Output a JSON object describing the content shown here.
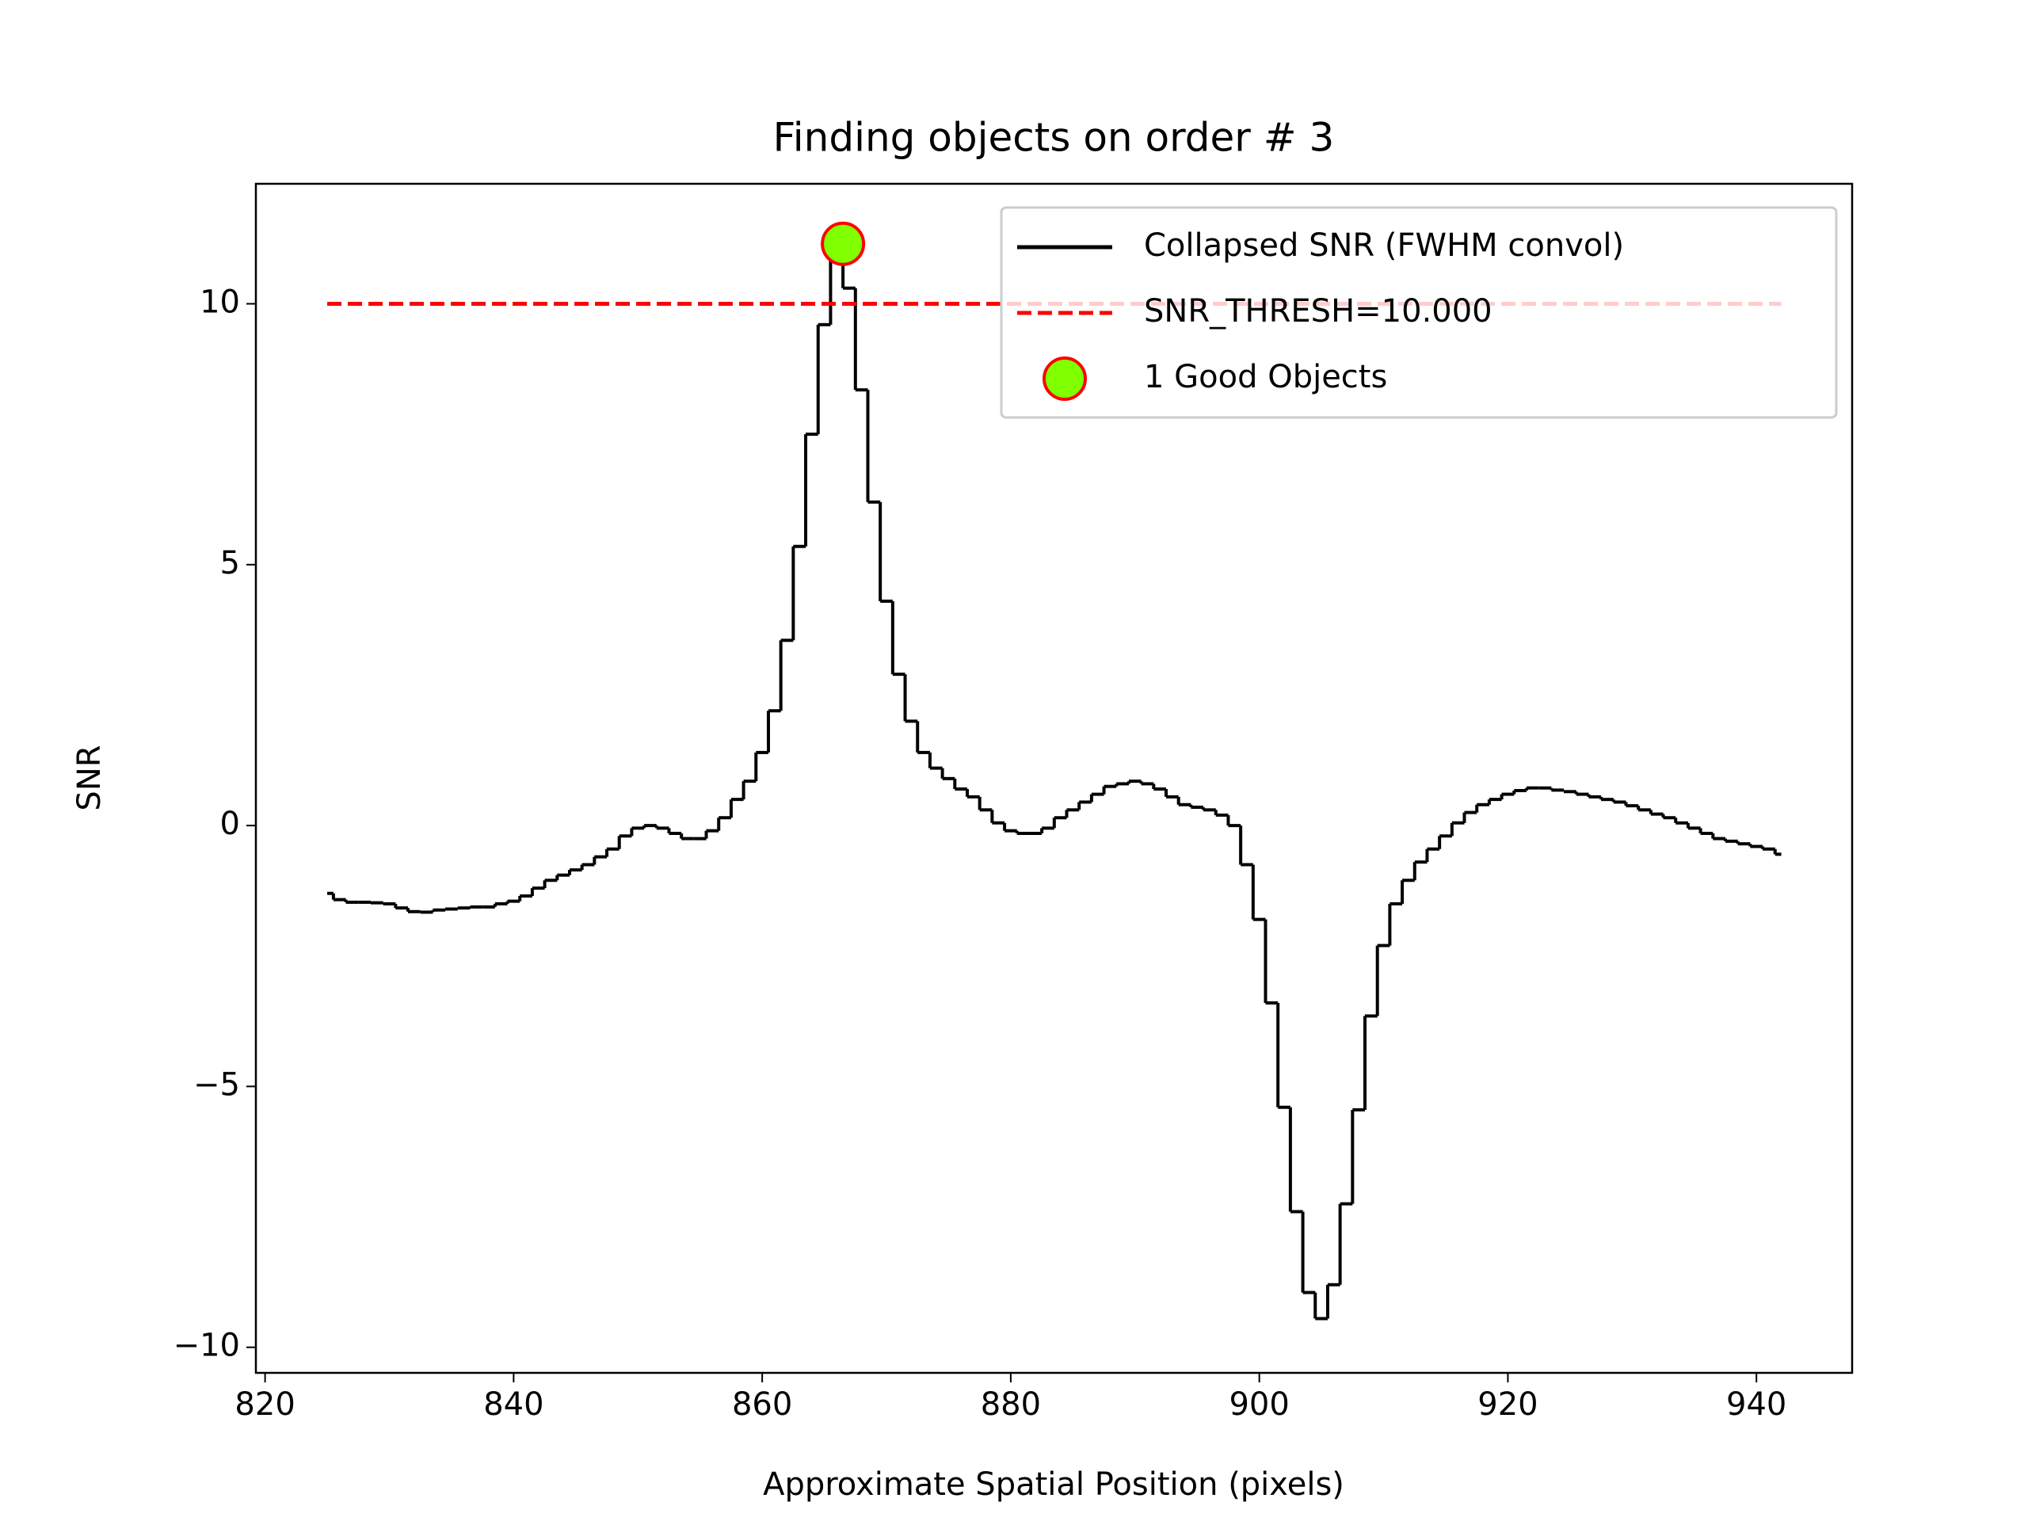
{
  "chart_data": {
    "type": "step",
    "title": "Finding objects on order # 3",
    "xlabel": "Approximate Spatial Position (pixels)",
    "ylabel": "SNR",
    "x": [
      825,
      826,
      827,
      828,
      829,
      830,
      831,
      832,
      833,
      834,
      835,
      836,
      837,
      838,
      839,
      840,
      841,
      842,
      843,
      844,
      845,
      846,
      847,
      848,
      849,
      850,
      851,
      852,
      853,
      854,
      855,
      856,
      857,
      858,
      859,
      860,
      861,
      862,
      863,
      864,
      865,
      866,
      867,
      868,
      869,
      870,
      871,
      872,
      873,
      874,
      875,
      876,
      877,
      878,
      879,
      880,
      881,
      882,
      883,
      884,
      885,
      886,
      887,
      888,
      889,
      890,
      891,
      892,
      893,
      894,
      895,
      896,
      897,
      898,
      899,
      900,
      901,
      902,
      903,
      904,
      905,
      906,
      907,
      908,
      909,
      910,
      911,
      912,
      913,
      914,
      915,
      916,
      917,
      918,
      919,
      920,
      921,
      922,
      923,
      924,
      925,
      926,
      927,
      928,
      929,
      930,
      931,
      932,
      933,
      934,
      935,
      936,
      937,
      938,
      939,
      940,
      941,
      942
    ],
    "series": [
      {
        "name": "Collapsed SNR (FWHM convol)",
        "color": "#000000",
        "values": [
          -1.3,
          -1.42,
          -1.47,
          -1.47,
          -1.48,
          -1.5,
          -1.58,
          -1.65,
          -1.66,
          -1.62,
          -1.6,
          -1.58,
          -1.56,
          -1.56,
          -1.5,
          -1.45,
          -1.35,
          -1.2,
          -1.05,
          -0.95,
          -0.85,
          -0.75,
          -0.6,
          -0.45,
          -0.2,
          -0.05,
          0.0,
          -0.05,
          -0.15,
          -0.25,
          -0.25,
          -0.1,
          0.15,
          0.5,
          0.85,
          1.4,
          2.2,
          3.55,
          5.35,
          7.5,
          9.6,
          11.2,
          10.3,
          8.35,
          6.2,
          4.3,
          2.9,
          2.0,
          1.4,
          1.1,
          0.9,
          0.7,
          0.55,
          0.3,
          0.05,
          -0.1,
          -0.15,
          -0.15,
          -0.05,
          0.15,
          0.3,
          0.45,
          0.6,
          0.75,
          0.8,
          0.85,
          0.8,
          0.7,
          0.55,
          0.4,
          0.35,
          0.3,
          0.2,
          0.0,
          -0.75,
          -1.8,
          -3.4,
          -5.4,
          -7.4,
          -8.95,
          -9.45,
          -8.8,
          -7.25,
          -5.45,
          -3.65,
          -2.3,
          -1.5,
          -1.05,
          -0.7,
          -0.45,
          -0.2,
          0.05,
          0.25,
          0.4,
          0.5,
          0.6,
          0.67,
          0.72,
          0.72,
          0.68,
          0.65,
          0.6,
          0.55,
          0.5,
          0.45,
          0.38,
          0.3,
          0.22,
          0.15,
          0.05,
          -0.05,
          -0.15,
          -0.25,
          -0.3,
          -0.35,
          -0.4,
          -0.45,
          -0.55
        ]
      }
    ],
    "threshold": {
      "name": "SNR_THRESH=10.000",
      "color": "#ff0000",
      "value": 10,
      "x": [
        825,
        942
      ]
    },
    "objects": {
      "name": "1 Good Objects",
      "color": "#7fff00",
      "edgecolor": "#ff0000",
      "x": [
        866.5
      ],
      "values": [
        11.15
      ]
    },
    "xlim": [
      819.26,
      947.7
    ],
    "ylim": [
      -10.49,
      12.3
    ],
    "xticks": [
      820,
      840,
      860,
      880,
      900,
      920,
      940
    ],
    "yticks": [
      {
        "value": -10,
        "label": "−10"
      },
      {
        "value": -5,
        "label": "−5"
      },
      0,
      5,
      10
    ],
    "legend": "upper right"
  }
}
